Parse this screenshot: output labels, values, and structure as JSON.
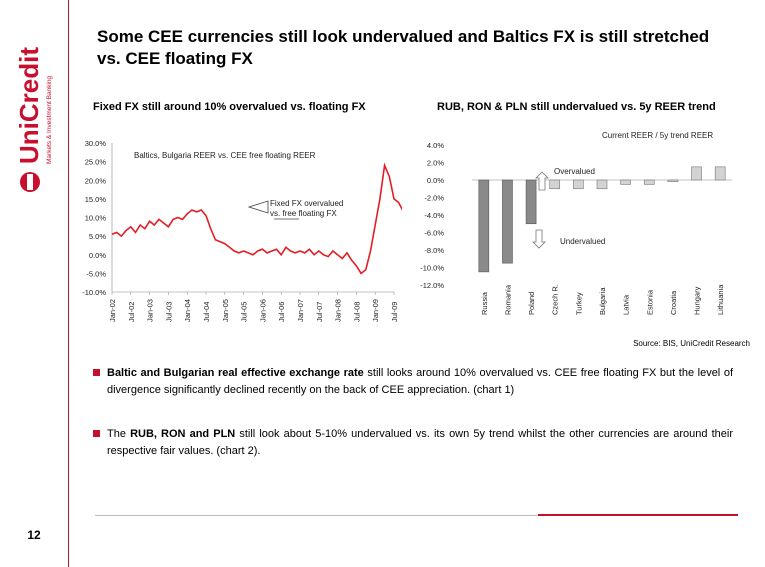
{
  "brand": {
    "name": "UniCredit",
    "tagline": "Markets & Investment Banking",
    "color": "#c8102e"
  },
  "page": {
    "title": "Some CEE currencies still look undervalued and Baltics FX is still stretched vs. CEE floating FX",
    "number": "12",
    "source": "Source: BIS, UniCredit Research"
  },
  "bullets": [
    {
      "bold": "Baltic and Bulgarian real effective exchange rate",
      "text": " still looks around 10% overvalued vs. CEE free floating FX but the level of divergence significantly declined recently on the back of CEE appreciation. (chart 1)"
    },
    {
      "pre": "The ",
      "bold": "RUB, RON and PLN",
      "text": " still look about 5-10% undervalued vs. its own 5y trend whilst the other currencies are around their respective fair values. (chart 2)."
    }
  ],
  "chart_data": [
    {
      "type": "line",
      "title": "Fixed FX still around 10% overvalued vs. floating FX",
      "series_label": "Baltics, Bulgaria REER vs. CEE free floating REER",
      "annotation": "Fixed FX overvalued vs. free floating FX",
      "color": "#e31e24",
      "ylim": [
        -10,
        30
      ],
      "yticks": [
        "30.0%",
        "25.0%",
        "20.0%",
        "15.0%",
        "10.0%",
        "5.0%",
        "0.0%",
        "-5.0%",
        "-10.0%"
      ],
      "xticks": [
        "Jan-02",
        "Jul-02",
        "Jan-03",
        "Jul-03",
        "Jan-04",
        "Jul-04",
        "Jan-05",
        "Jul-05",
        "Jan-06",
        "Jul-06",
        "Jan-07",
        "Jul-07",
        "Jan-08",
        "Jul-08",
        "Jan-09",
        "Jul-09"
      ],
      "x": [
        0,
        0.25,
        0.5,
        0.75,
        1,
        1.25,
        1.5,
        1.75,
        2,
        2.25,
        2.5,
        2.75,
        3,
        3.25,
        3.5,
        3.75,
        4,
        4.25,
        4.5,
        4.75,
        5,
        5.25,
        5.5,
        5.75,
        6,
        6.25,
        6.5,
        6.75,
        7,
        7.25,
        7.5,
        7.75,
        8,
        8.25,
        8.5,
        8.75,
        9,
        9.25,
        9.5,
        9.75,
        10,
        10.25,
        10.5,
        10.75,
        11,
        11.25,
        11.5,
        11.75,
        12,
        12.25,
        12.5,
        12.75,
        13,
        13.25,
        13.5,
        13.75,
        14,
        14.25,
        14.5,
        14.75,
        15,
        15.25,
        15.5,
        15.75
      ],
      "values": [
        5.5,
        6,
        5,
        6.5,
        7.5,
        6,
        8,
        7,
        9,
        8,
        9.5,
        8.5,
        7.5,
        9.5,
        10,
        9.5,
        11,
        12,
        11.5,
        12,
        10.5,
        7,
        4,
        3.5,
        3,
        2,
        1,
        0.5,
        1,
        0.5,
        0,
        1,
        1.5,
        0.5,
        1,
        1.5,
        0,
        2,
        1,
        0.5,
        1,
        0.5,
        1.5,
        0,
        1,
        0,
        -0.5,
        1,
        0,
        -1,
        0.5,
        -1.5,
        -3,
        -5,
        -4,
        1,
        8,
        15,
        24,
        21,
        15,
        14,
        11.5,
        10
      ]
    },
    {
      "type": "bar",
      "title": "RUB, RON & PLN still undervalued vs. 5y REER trend",
      "legend": "Current REER / 5y trend REER",
      "annotations": [
        "Overvalued",
        "Undervalued"
      ],
      "ylim": [
        -12,
        4
      ],
      "yticks": [
        "4.0%",
        "2.0%",
        "0.0%",
        "-2.0%",
        "-4.0%",
        "-6.0%",
        "-8.0%",
        "-10.0%",
        "-12.0%"
      ],
      "categories": [
        "Russia",
        "Romania",
        "Poland",
        "Czech R.",
        "Turkey",
        "Bulgaria",
        "Latvia",
        "Estonia",
        "Croatia",
        "Hungary",
        "Lithuania"
      ],
      "values": [
        -10.5,
        -9.5,
        -5,
        -1,
        -1,
        -1,
        -0.5,
        -0.5,
        -0.2,
        1.5,
        1.5
      ],
      "colors": {
        "dark": "#8a8a8a",
        "light": "#d3d3d3"
      }
    }
  ]
}
